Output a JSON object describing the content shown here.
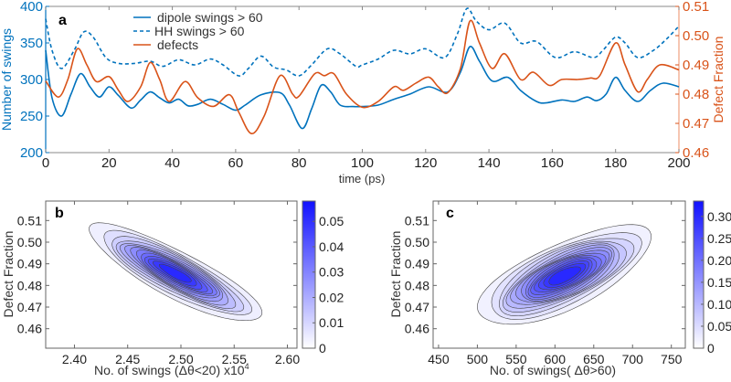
{
  "colors": {
    "dipole": "#0072bd",
    "hh": "#0072bd",
    "defects": "#d95319",
    "density": "#1010ff"
  },
  "chart_data": [
    {
      "panel": "a",
      "type": "line",
      "xlabel": "time (ps)",
      "ylabel": "Number of swings",
      "y2label": "Defect Fraction",
      "xlim": [
        0,
        200
      ],
      "ylim": [
        200,
        400
      ],
      "y2lim": [
        0.46,
        0.51
      ],
      "xticks": [
        "0",
        "20",
        "40",
        "60",
        "80",
        "100",
        "120",
        "140",
        "160",
        "180",
        "200"
      ],
      "yticks": [
        "200",
        "250",
        "300",
        "350",
        "400"
      ],
      "y2ticks": [
        "0.46",
        "0.47",
        "0.48",
        "0.49",
        "0.50",
        "0.51"
      ],
      "legend_position": "top-center",
      "series": [
        {
          "name": "dipole swings > 60",
          "axis": "left",
          "style": "solid",
          "x": [
            0,
            2,
            5,
            8,
            11,
            14,
            17,
            20,
            23,
            27,
            30,
            33,
            36,
            39,
            42,
            45,
            48,
            52,
            56,
            60,
            63,
            68,
            74,
            77,
            81,
            84,
            87,
            90,
            93,
            97,
            100,
            105,
            110,
            115,
            121,
            127,
            131,
            134,
            137,
            141,
            146,
            150,
            155,
            158,
            163,
            167,
            171,
            174,
            177,
            180,
            183,
            187,
            191,
            195,
            200
          ],
          "y": [
            340,
            275,
            250,
            280,
            308,
            290,
            276,
            290,
            278,
            261,
            272,
            283,
            275,
            268,
            273,
            264,
            266,
            273,
            266,
            258,
            265,
            279,
            282,
            265,
            233,
            260,
            292,
            283,
            265,
            263,
            263,
            265,
            273,
            280,
            290,
            283,
            310,
            345,
            325,
            298,
            303,
            285,
            270,
            268,
            272,
            270,
            276,
            271,
            280,
            303,
            285,
            270,
            285,
            295,
            290
          ]
        },
        {
          "name": "HH swings > 60",
          "axis": "left",
          "style": "dashed",
          "x": [
            0,
            2,
            5,
            9,
            12,
            15,
            19,
            23,
            28,
            33,
            37,
            42,
            47,
            52,
            56,
            61,
            64,
            68,
            72,
            76,
            80,
            84,
            89,
            93,
            98,
            100,
            105,
            110,
            115,
            120,
            126,
            130,
            133,
            136,
            140,
            145,
            150,
            155,
            161,
            167,
            173,
            176,
            180,
            183,
            187,
            192,
            196,
            200
          ],
          "y": [
            383,
            340,
            315,
            340,
            365,
            358,
            330,
            322,
            322,
            325,
            318,
            327,
            320,
            328,
            320,
            305,
            315,
            332,
            317,
            313,
            305,
            320,
            342,
            335,
            318,
            320,
            328,
            340,
            335,
            342,
            330,
            362,
            397,
            380,
            368,
            377,
            350,
            352,
            330,
            338,
            330,
            340,
            358,
            350,
            330,
            340,
            355,
            373
          ]
        },
        {
          "name": "defects",
          "axis": "right",
          "style": "solid",
          "x": [
            0,
            4,
            7,
            10,
            13,
            16,
            20,
            23,
            26,
            30,
            33,
            36,
            39,
            44,
            48,
            53,
            58,
            61,
            65,
            69,
            74,
            78,
            80,
            85,
            88,
            91,
            95,
            100,
            105,
            110,
            113,
            117,
            121,
            124,
            127,
            131,
            134,
            137,
            141,
            145,
            150,
            154,
            159,
            163,
            168,
            172,
            175,
            180,
            183,
            187,
            190,
            194,
            200
          ],
          "y": [
            0.4845,
            0.479,
            0.485,
            0.4955,
            0.49,
            0.4843,
            0.486,
            0.4813,
            0.4775,
            0.4825,
            0.4908,
            0.485,
            0.4775,
            0.4843,
            0.4788,
            0.4758,
            0.4798,
            0.4738,
            0.4665,
            0.4725,
            0.4863,
            0.48,
            0.4793,
            0.487,
            0.4863,
            0.487,
            0.48,
            0.4755,
            0.4775,
            0.4825,
            0.4813,
            0.4838,
            0.4858,
            0.4825,
            0.4805,
            0.4888,
            0.505,
            0.4975,
            0.4888,
            0.4938,
            0.485,
            0.4875,
            0.483,
            0.485,
            0.485,
            0.4855,
            0.4863,
            0.4975,
            0.49,
            0.4808,
            0.485,
            0.49,
            0.4883
          ]
        }
      ]
    },
    {
      "panel": "b",
      "type": "contour",
      "xlabel": "No. of swings (Δθ<20)  x10",
      "xlabel_exponent": "4",
      "ylabel": "Defect Fraction",
      "xlim": [
        2.373,
        2.609
      ],
      "ylim": [
        0.451,
        0.519
      ],
      "xticks": [
        "2.40",
        "2.45",
        "2.50",
        "2.55",
        "2.60"
      ],
      "yticks": [
        "0.46",
        "0.47",
        "0.48",
        "0.49",
        "0.50",
        "0.51"
      ],
      "colorbar": {
        "range": [
          0,
          0.058
        ],
        "ticks": [
          "0",
          "0.01",
          "0.02",
          "0.03",
          "0.04",
          "0.05"
        ]
      },
      "density": {
        "mean": [
          2.495,
          0.4855
        ],
        "std": [
          0.035,
          0.0098
        ],
        "corr": -0.85,
        "peak": 0.057,
        "levels": [
          0.004,
          0.008,
          0.012,
          0.016,
          0.02,
          0.024,
          0.028,
          0.032,
          0.036,
          0.04,
          0.044,
          0.048,
          0.052
        ]
      }
    },
    {
      "panel": "c",
      "type": "contour",
      "xlabel": "No. of swings( Δθ>60)",
      "ylabel": "Defect Fraction",
      "xlim": [
        443,
        768
      ],
      "ylim": [
        0.451,
        0.519
      ],
      "xticks": [
        "450",
        "500",
        "550",
        "600",
        "650",
        "700",
        "750"
      ],
      "yticks": [
        "0.46",
        "0.47",
        "0.48",
        "0.49",
        "0.50",
        "0.51"
      ],
      "colorbar": {
        "range": [
          0,
          0.335
        ],
        "ticks": [
          "0",
          "0.05",
          "0.10",
          "0.15",
          "0.20",
          "0.25",
          "0.30"
        ]
      },
      "density": {
        "mean": [
          612,
          0.4845
        ],
        "std": [
          47,
          0.0097
        ],
        "corr": 0.7,
        "peak": 0.33,
        "levels": [
          0.02,
          0.04,
          0.06,
          0.08,
          0.1,
          0.12,
          0.14,
          0.16,
          0.18,
          0.2,
          0.22,
          0.24,
          0.26,
          0.28,
          0.3
        ]
      }
    }
  ]
}
